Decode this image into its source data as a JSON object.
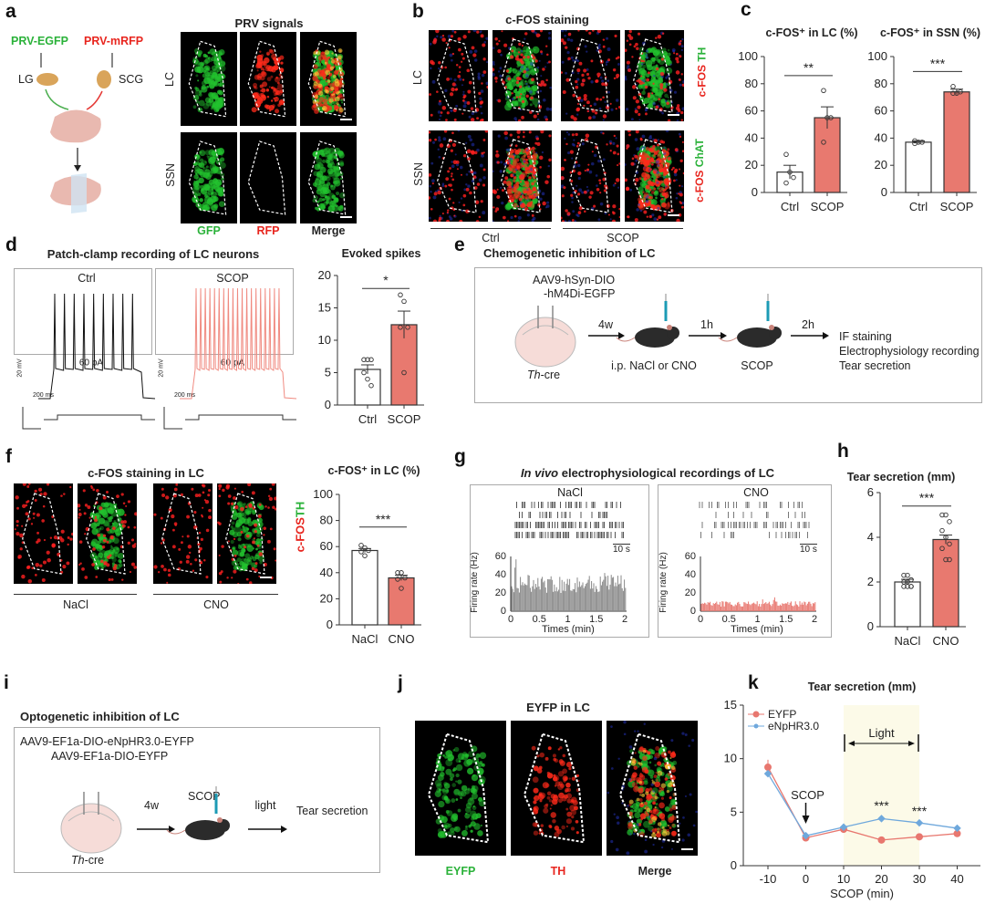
{
  "panels": {
    "a": {
      "label": "a",
      "title": "PRV signals",
      "virus_left": "PRV-EGFP",
      "virus_right": "PRV-mRFP",
      "ganglion_left": "LG",
      "ganglion_right": "SCG",
      "rows": [
        "LC",
        "SSN"
      ],
      "cols": [
        "GFP",
        "RFP",
        "Merge"
      ]
    },
    "b": {
      "label": "b",
      "title": "c-FOS staining",
      "rows": [
        "LC",
        "SSN"
      ],
      "groups": [
        "Ctrl",
        "SCOP"
      ],
      "stain_lc": [
        "c-FOS",
        "TH"
      ],
      "stain_ssn": [
        "c-FOS",
        "ChAT"
      ]
    },
    "c": {
      "label": "c"
    },
    "d": {
      "label": "d",
      "title": "Patch-clamp recording of LC neurons",
      "traces": [
        "Ctrl",
        "SCOP"
      ],
      "current": "60 pA",
      "scale_v": "20 mV",
      "scale_t": "200 ms"
    },
    "e": {
      "label": "e",
      "title": "Chemogenetic  inhibition of LC",
      "virus": [
        "AAV9-hSyn-DIO",
        "-hM4Di-EGFP"
      ],
      "region": "LC",
      "mouse_line": "Th",
      "mouse_line_suffix": "-cre",
      "step1": "4w",
      "step1_label": "i.p. NaCl or CNO",
      "step2": "1h",
      "step2_label": "SCOP",
      "step3": "2h",
      "outcomes": [
        "IF staining",
        "Electrophysiology recording",
        "Tear secretion"
      ]
    },
    "f": {
      "label": "f",
      "title": "c-FOS staining in LC",
      "groups": [
        "NaCl",
        "CNO"
      ],
      "stain": [
        "c-FOS",
        "TH"
      ]
    },
    "g": {
      "label": "g",
      "title_italic": "In vivo",
      "title_rest": " electrophysiological recordings of LC",
      "conditions": [
        "NaCl",
        "CNO"
      ],
      "scale": "10 s",
      "ylabel": "Firing rate (Hz)",
      "xlabel": "Times (min)",
      "yticks": [
        "0",
        "20",
        "40",
        "60"
      ],
      "xticks": [
        "0",
        "0.5",
        "1",
        "1.5",
        "2"
      ]
    },
    "h": {
      "label": "h"
    },
    "i": {
      "label": "i",
      "title": "Optogenetic inhibition of LC",
      "virus": [
        "AAV9-EF1a-DIO-eNpHR3.0-EYFP",
        "AAV9-EF1a-DIO-EYFP"
      ],
      "region": "LC",
      "mouse_line": "Th",
      "mouse_line_suffix": "-cre",
      "step1": "4w",
      "drug": "SCOP",
      "step2": "light",
      "outcome": "Tear secretion"
    },
    "j": {
      "label": "j",
      "title": "EYFP in LC",
      "cols": [
        "EYFP",
        "TH",
        "Merge"
      ]
    },
    "k": {
      "label": "k"
    }
  },
  "colors": {
    "ctrl_fill": "#ffffff",
    "treat_fill": "#e8796f",
    "eyfp": "#e8776f",
    "enphr": "#6fa8dc",
    "light_window": "#fcfae8",
    "gfp": "#2bb23a",
    "rfp": "#e8261f"
  },
  "chart_data": [
    {
      "type": "bar",
      "title": "c-FOS⁺ in LC (%)",
      "categories": [
        "Ctrl",
        "SCOP"
      ],
      "values": [
        15,
        55
      ],
      "sem": [
        5,
        8
      ],
      "points": [
        [
          28,
          15,
          11,
          7
        ],
        [
          75,
          55,
          55,
          37
        ]
      ],
      "significance": "**",
      "ylim": [
        0,
        100
      ],
      "yticks": [
        0,
        20,
        40,
        60,
        80,
        100
      ]
    },
    {
      "type": "bar",
      "title": "c-FOS⁺ in SSN (%)",
      "categories": [
        "Ctrl",
        "SCOP"
      ],
      "values": [
        37,
        74
      ],
      "sem": [
        1,
        2
      ],
      "points": [
        [
          36,
          37,
          37,
          38
        ],
        [
          78,
          73,
          74,
          73
        ]
      ],
      "significance": "***",
      "ylim": [
        0,
        100
      ],
      "yticks": [
        0,
        20,
        40,
        60,
        80,
        100
      ]
    },
    {
      "type": "bar",
      "title": "Evoked spikes",
      "categories": [
        "Ctrl",
        "SCOP"
      ],
      "values": [
        5.5,
        12.4
      ],
      "sem": [
        0.7,
        2.1
      ],
      "points": [
        [
          7,
          7,
          7,
          5,
          4,
          3
        ],
        [
          17,
          16,
          12,
          12,
          5
        ]
      ],
      "significance": "*",
      "ylim": [
        0,
        20
      ],
      "yticks": [
        0,
        5,
        10,
        15,
        20
      ]
    },
    {
      "type": "bar",
      "title": "c-FOS⁺ in LC (%)",
      "categories": [
        "NaCl",
        "CNO"
      ],
      "values": [
        57,
        36
      ],
      "sem": [
        1.5,
        2
      ],
      "points": [
        [
          61,
          59,
          57,
          56,
          53
        ],
        [
          40,
          40,
          36,
          35,
          28
        ]
      ],
      "significance": "***",
      "ylim": [
        0,
        100
      ],
      "yticks": [
        0,
        20,
        40,
        60,
        80,
        100
      ]
    },
    {
      "type": "bar",
      "title": "Tear secretion (mm)",
      "categories": [
        "NaCl",
        "CNO"
      ],
      "values": [
        2.0,
        3.9
      ],
      "sem": [
        0.12,
        0.2
      ],
      "points": [
        [
          2.3,
          2.3,
          2.1,
          2.0,
          2.0,
          1.8,
          1.8,
          1.8,
          1.8
        ],
        [
          5.0,
          5.0,
          4.7,
          4.3,
          4.0,
          3.7,
          3.5,
          3.0,
          3.0
        ]
      ],
      "significance": "***",
      "ylim": [
        0,
        6
      ],
      "yticks": [
        0,
        2,
        4,
        6
      ]
    },
    {
      "type": "line",
      "title": "Tear secretion (mm)",
      "xlabel": "SCOP (min)",
      "x": [
        -10,
        0,
        10,
        20,
        30,
        40
      ],
      "xticks": [
        -10,
        0,
        10,
        20,
        30,
        40
      ],
      "ylim": [
        0,
        15
      ],
      "yticks": [
        0,
        5,
        10,
        15
      ],
      "series": [
        {
          "name": "EYFP",
          "values": [
            9.2,
            2.6,
            3.4,
            2.4,
            2.7,
            3.0
          ],
          "sem": [
            0.7,
            0.2,
            0.2,
            0.1,
            0.1,
            0.3
          ]
        },
        {
          "name": "eNpHR3.0",
          "values": [
            8.6,
            2.8,
            3.6,
            4.4,
            4.0,
            3.5
          ],
          "sem": [
            0.3,
            0.2,
            0.2,
            0.25,
            0.2,
            0.3
          ]
        }
      ],
      "light_window": [
        10,
        30
      ],
      "light_label": "Light",
      "arrow_label": "SCOP",
      "arrow_at": 0,
      "significance": [
        {
          "x": 20,
          "label": "***"
        },
        {
          "x": 30,
          "label": "***"
        }
      ],
      "legend": "top-left"
    }
  ]
}
